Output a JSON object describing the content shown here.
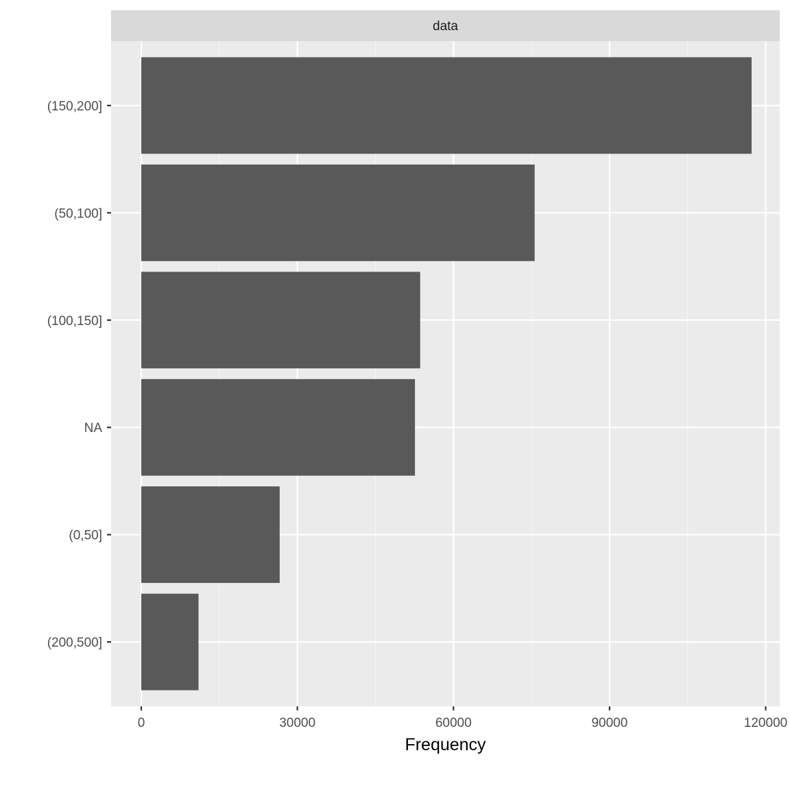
{
  "chart_data": {
    "type": "bar",
    "orientation": "horizontal",
    "facet_label": "data",
    "categories": [
      "(150,200]",
      "(50,100]",
      "(100,150]",
      "NA",
      "(0,50]",
      "(200,500]"
    ],
    "values": [
      117300,
      75600,
      53600,
      52600,
      26600,
      11000
    ],
    "xlabel": "Frequency",
    "ylabel": "",
    "xlim": [
      -5800,
      122700
    ],
    "x_ticks": [
      0,
      30000,
      60000,
      90000,
      120000
    ],
    "x_tick_labels": [
      "0",
      "30000",
      "60000",
      "90000",
      "120000"
    ],
    "grid": true,
    "legend": "none",
    "colors": {
      "bar": "#595959",
      "panel_background": "#ebebeb",
      "grid_major": "#ffffff",
      "grid_minor": "#f5f5f5",
      "strip_background": "#d9d9d9",
      "tick": "#333333"
    }
  }
}
